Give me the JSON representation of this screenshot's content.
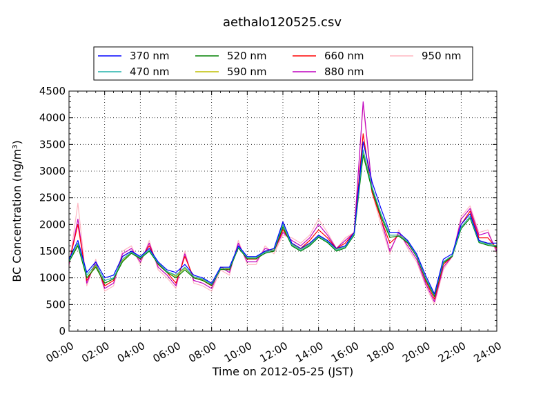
{
  "chart_data": {
    "type": "line",
    "title": "aethalo120525.csv",
    "xlabel": "Time on 2012-05-25 (JST)",
    "ylabel": "BC Concentration (ng/m³)",
    "xlim": [
      0,
      24
    ],
    "ylim": [
      0,
      4500
    ],
    "grid": true,
    "legend_position": "top",
    "x_tick_labels": [
      "00:00",
      "02:00",
      "04:00",
      "06:00",
      "08:00",
      "10:00",
      "12:00",
      "14:00",
      "16:00",
      "18:00",
      "20:00",
      "22:00",
      "24:00"
    ],
    "y_ticks": [
      0,
      500,
      1000,
      1500,
      2000,
      2500,
      3000,
      3500,
      4000,
      4500
    ],
    "x_hours": [
      0,
      0.5,
      1,
      1.5,
      2,
      2.5,
      3,
      3.5,
      4,
      4.5,
      5,
      5.5,
      6,
      6.5,
      7,
      7.5,
      8,
      8.5,
      9,
      9.5,
      10,
      10.5,
      11,
      11.5,
      12,
      12.5,
      13,
      13.5,
      14,
      14.5,
      15,
      15.5,
      16,
      16.5,
      17,
      17.5,
      18,
      18.5,
      19,
      19.5,
      20,
      20.5,
      21,
      21.5,
      22,
      22.5,
      23,
      23.5,
      24
    ],
    "series": [
      {
        "name": "370 nm",
        "color": "#0000ff",
        "values": [
          1350,
          1700,
          1100,
          1300,
          1000,
          1050,
          1400,
          1500,
          1400,
          1550,
          1300,
          1150,
          1100,
          1250,
          1050,
          1000,
          900,
          1200,
          1200,
          1600,
          1400,
          1400,
          1500,
          1550,
          2050,
          1650,
          1550,
          1650,
          1800,
          1700,
          1550,
          1600,
          1850,
          3550,
          2800,
          2300,
          1850,
          1850,
          1700,
          1450,
          1050,
          700,
          1350,
          1450,
          2000,
          2200,
          1700,
          1650,
          1650
        ]
      },
      {
        "name": "470 nm",
        "color": "#20b2aa",
        "values": [
          1320,
          1650,
          1050,
          1250,
          950,
          1000,
          1350,
          1480,
          1380,
          1520,
          1280,
          1120,
          1050,
          1200,
          1020,
          980,
          880,
          1180,
          1180,
          1580,
          1380,
          1380,
          1480,
          1520,
          2000,
          1620,
          1520,
          1620,
          1780,
          1680,
          1520,
          1580,
          1820,
          3400,
          2700,
          2200,
          1800,
          1800,
          1680,
          1420,
          1000,
          680,
          1300,
          1420,
          1950,
          2150,
          1680,
          1630,
          1600
        ]
      },
      {
        "name": "520 nm",
        "color": "#008000",
        "values": [
          1300,
          1600,
          1000,
          1200,
          900,
          980,
          1300,
          1460,
          1360,
          1500,
          1260,
          1100,
          1000,
          1150,
          1000,
          950,
          860,
          1160,
          1150,
          1560,
          1360,
          1360,
          1460,
          1500,
          1950,
          1600,
          1500,
          1600,
          1760,
          1660,
          1500,
          1560,
          1800,
          3300,
          2650,
          2150,
          1760,
          1780,
          1660,
          1400,
          980,
          650,
          1280,
          1400,
          1920,
          2120,
          1660,
          1610,
          1580
        ]
      },
      {
        "name": "590 nm",
        "color": "#bfbf00",
        "values": [
          1300,
          1620,
          1000,
          1220,
          900,
          980,
          1320,
          1480,
          1380,
          1520,
          1280,
          1120,
          1030,
          1180,
          1020,
          970,
          880,
          1180,
          1170,
          1580,
          1380,
          1380,
          1500,
          1540,
          1980,
          1640,
          1540,
          1640,
          1800,
          1700,
          1540,
          1600,
          1850,
          3350,
          2700,
          2200,
          1800,
          1800,
          1700,
          1430,
          1000,
          670,
          1300,
          1420,
          1950,
          2150,
          1700,
          1640,
          1600
        ]
      },
      {
        "name": "660 nm",
        "color": "#ff0000",
        "values": [
          1280,
          2000,
          950,
          1250,
          850,
          950,
          1400,
          1500,
          1350,
          1600,
          1250,
          1100,
          900,
          1400,
          1000,
          950,
          850,
          1200,
          1150,
          1600,
          1350,
          1350,
          1500,
          1500,
          1900,
          1650,
          1550,
          1700,
          1900,
          1750,
          1550,
          1650,
          1850,
          3700,
          2600,
          2100,
          1650,
          1800,
          1650,
          1400,
          950,
          600,
          1250,
          1400,
          2000,
          2250,
          1750,
          1750,
          1550
        ]
      },
      {
        "name": "880 nm",
        "color": "#bf00bf",
        "values": [
          1250,
          2100,
          900,
          1300,
          800,
          900,
          1450,
          1550,
          1300,
          1650,
          1200,
          1050,
          850,
          1450,
          950,
          900,
          800,
          1200,
          1100,
          1650,
          1300,
          1300,
          1550,
          1500,
          1850,
          1700,
          1600,
          1750,
          2000,
          1800,
          1550,
          1700,
          1850,
          4300,
          2700,
          2100,
          1500,
          1850,
          1600,
          1350,
          900,
          550,
          1200,
          1400,
          2100,
          2300,
          1800,
          1850,
          1500
        ]
      },
      {
        "name": "950 nm",
        "color": "#ffb6c1",
        "values": [
          1200,
          2400,
          850,
          1350,
          750,
          850,
          1500,
          1600,
          1250,
          1700,
          1150,
          1000,
          800,
          1500,
          900,
          850,
          750,
          1150,
          1050,
          1700,
          1250,
          1250,
          1600,
          1450,
          1800,
          1750,
          1650,
          1800,
          2100,
          1850,
          1550,
          1750,
          1850,
          4250,
          2600,
          2000,
          1450,
          1900,
          1550,
          1300,
          850,
          500,
          1150,
          1400,
          2150,
          2350,
          1850,
          1900,
          1450
        ]
      }
    ]
  }
}
